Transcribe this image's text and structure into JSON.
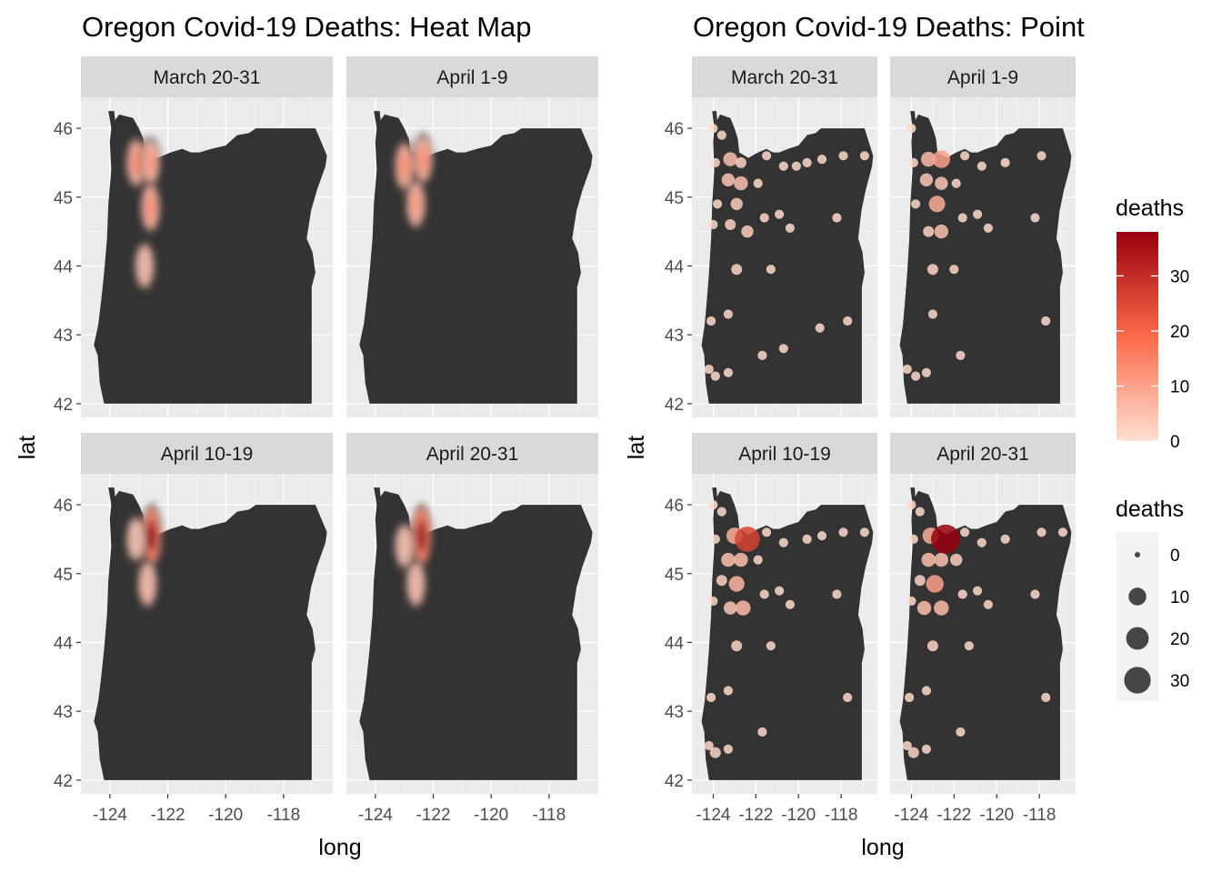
{
  "charts": {
    "left_title": "Oregon Covid-19 Deaths: Heat Map",
    "right_title": "Oregon Covid-19 Deaths: Point"
  },
  "panels": [
    "March 20-31",
    "April 1-9",
    "April 10-19",
    "April 20-31"
  ],
  "axes": {
    "xlabel": "long",
    "ylabel": "lat",
    "x_ticks": [
      -124,
      -122,
      -120,
      -118
    ],
    "x_tick_labels": [
      "-124",
      "-122",
      "-120",
      "-118"
    ],
    "y_ticks": [
      42,
      43,
      44,
      45,
      46
    ],
    "y_tick_labels": [
      "42",
      "43",
      "44",
      "45",
      "46"
    ],
    "xlim": [
      -125,
      -116.3
    ],
    "ylim": [
      41.8,
      46.45
    ]
  },
  "legend": {
    "color_title": "deaths",
    "color_ticks": [
      0,
      10,
      20,
      30
    ],
    "color_tick_labels": [
      "0",
      "10",
      "20",
      "30"
    ],
    "color_range": [
      0,
      38
    ],
    "size_title": "deaths",
    "size_values": [
      0,
      10,
      20,
      30
    ],
    "size_labels": [
      "0",
      "10",
      "20",
      "30"
    ]
  },
  "colors": {
    "low": "#fee0d2",
    "mid": "#fb6a4a",
    "high": "#99000d",
    "state_fill": "#333333",
    "panel_bg": "#ebebeb",
    "strip_bg": "#d9d9d9"
  },
  "chart_data": [
    {
      "type": "heatmap",
      "title": "Oregon Covid-19 Deaths: Heat Map",
      "xlabel": "long",
      "ylabel": "lat",
      "facets": [
        {
          "panel": "March 20-31",
          "hotspots": [
            {
              "lon": -123.1,
              "lat": 45.5,
              "intensity": 0.35
            },
            {
              "lon": -122.6,
              "lat": 45.5,
              "intensity": 0.3
            },
            {
              "lon": -122.6,
              "lat": 44.85,
              "intensity": 0.35
            },
            {
              "lon": -122.8,
              "lat": 44.0,
              "intensity": 0.2
            }
          ]
        },
        {
          "panel": "April 1-9",
          "hotspots": [
            {
              "lon": -123.0,
              "lat": 45.45,
              "intensity": 0.35
            },
            {
              "lon": -122.35,
              "lat": 45.55,
              "intensity": 0.35
            },
            {
              "lon": -122.6,
              "lat": 44.9,
              "intensity": 0.3
            }
          ]
        },
        {
          "panel": "April 10-19",
          "hotspots": [
            {
              "lon": -122.55,
              "lat": 45.55,
              "intensity": 1.0
            },
            {
              "lon": -123.1,
              "lat": 45.5,
              "intensity": 0.15
            },
            {
              "lon": -122.7,
              "lat": 44.85,
              "intensity": 0.2
            }
          ]
        },
        {
          "panel": "April 20-31",
          "hotspots": [
            {
              "lon": -122.4,
              "lat": 45.55,
              "intensity": 1.0
            },
            {
              "lon": -123.0,
              "lat": 45.4,
              "intensity": 0.15
            },
            {
              "lon": -122.6,
              "lat": 44.85,
              "intensity": 0.2
            }
          ]
        }
      ]
    },
    {
      "type": "scatter",
      "title": "Oregon Covid-19 Deaths: Point",
      "xlabel": "long",
      "ylabel": "lat",
      "size_and_color": "deaths",
      "facets": [
        {
          "panel": "March 20-31",
          "points": [
            [
              -124.0,
              46.0,
              1
            ],
            [
              -123.6,
              45.9,
              1
            ],
            [
              -123.9,
              45.5,
              1
            ],
            [
              -123.2,
              45.55,
              5
            ],
            [
              -122.7,
              45.5,
              2
            ],
            [
              -121.5,
              45.6,
              1
            ],
            [
              -120.7,
              45.45,
              1
            ],
            [
              -120.1,
              45.45,
              1
            ],
            [
              -119.6,
              45.5,
              1
            ],
            [
              -118.9,
              45.55,
              1
            ],
            [
              -117.9,
              45.6,
              1
            ],
            [
              -116.9,
              45.6,
              1
            ],
            [
              -123.3,
              45.25,
              4
            ],
            [
              -122.7,
              45.2,
              5
            ],
            [
              -121.9,
              45.2,
              1
            ],
            [
              -123.8,
              44.9,
              1
            ],
            [
              -122.9,
              44.9,
              3
            ],
            [
              -121.6,
              44.7,
              1
            ],
            [
              -120.9,
              44.75,
              1
            ],
            [
              -118.2,
              44.7,
              1
            ],
            [
              -123.2,
              44.6,
              2
            ],
            [
              -122.4,
              44.5,
              3
            ],
            [
              -120.4,
              44.55,
              1
            ],
            [
              -124.0,
              44.6,
              1
            ],
            [
              -122.9,
              43.95,
              2
            ],
            [
              -121.3,
              43.95,
              1
            ],
            [
              -123.3,
              43.3,
              1
            ],
            [
              -124.1,
              43.2,
              1
            ],
            [
              -119.0,
              43.1,
              1
            ],
            [
              -117.7,
              43.2,
              1
            ],
            [
              -120.7,
              42.8,
              1
            ],
            [
              -121.7,
              42.7,
              1
            ],
            [
              -124.2,
              42.5,
              1
            ],
            [
              -123.9,
              42.4,
              1
            ],
            [
              -123.3,
              42.45,
              1
            ]
          ]
        },
        {
          "panel": "April 1-9",
          "points": [
            [
              -124.0,
              46.0,
              1
            ],
            [
              -123.9,
              45.5,
              1
            ],
            [
              -123.2,
              45.55,
              6
            ],
            [
              -122.6,
              45.55,
              10
            ],
            [
              -121.5,
              45.6,
              1
            ],
            [
              -120.7,
              45.45,
              1
            ],
            [
              -119.6,
              45.5,
              1
            ],
            [
              -117.9,
              45.6,
              1
            ],
            [
              -123.3,
              45.25,
              4
            ],
            [
              -122.6,
              45.2,
              4
            ],
            [
              -121.9,
              45.2,
              1
            ],
            [
              -123.8,
              44.9,
              1
            ],
            [
              -122.8,
              44.9,
              8
            ],
            [
              -121.6,
              44.7,
              1
            ],
            [
              -120.9,
              44.75,
              1
            ],
            [
              -118.2,
              44.7,
              1
            ],
            [
              -123.2,
              44.5,
              2
            ],
            [
              -122.6,
              44.5,
              5
            ],
            [
              -120.4,
              44.55,
              1
            ],
            [
              -123.0,
              43.95,
              2
            ],
            [
              -122.0,
              43.95,
              1
            ],
            [
              -123.0,
              43.3,
              1
            ],
            [
              -117.7,
              43.2,
              1
            ],
            [
              -121.7,
              42.7,
              1
            ],
            [
              -124.2,
              42.5,
              1
            ],
            [
              -123.8,
              42.4,
              1
            ],
            [
              -123.3,
              42.45,
              1
            ]
          ]
        },
        {
          "panel": "April 10-19",
          "points": [
            [
              -124.0,
              46.0,
              1
            ],
            [
              -123.6,
              45.9,
              1
            ],
            [
              -123.9,
              45.5,
              1
            ],
            [
              -123.0,
              45.55,
              8
            ],
            [
              -122.4,
              45.5,
              26
            ],
            [
              -121.5,
              45.6,
              1
            ],
            [
              -120.7,
              45.45,
              1
            ],
            [
              -119.6,
              45.5,
              1
            ],
            [
              -118.9,
              45.55,
              1
            ],
            [
              -117.9,
              45.6,
              1
            ],
            [
              -116.9,
              45.6,
              1
            ],
            [
              -123.3,
              45.2,
              5
            ],
            [
              -122.7,
              45.2,
              5
            ],
            [
              -121.9,
              45.2,
              1
            ],
            [
              -123.6,
              44.9,
              2
            ],
            [
              -122.9,
              44.85,
              7
            ],
            [
              -121.6,
              44.7,
              1
            ],
            [
              -120.9,
              44.75,
              1
            ],
            [
              -118.2,
              44.7,
              1
            ],
            [
              -123.2,
              44.5,
              4
            ],
            [
              -122.6,
              44.5,
              6
            ],
            [
              -120.4,
              44.55,
              1
            ],
            [
              -124.0,
              44.6,
              1
            ],
            [
              -122.9,
              43.95,
              2
            ],
            [
              -121.3,
              43.95,
              1
            ],
            [
              -123.3,
              43.3,
              1
            ],
            [
              -124.1,
              43.2,
              1
            ],
            [
              -117.7,
              43.2,
              1
            ],
            [
              -121.7,
              42.7,
              1
            ],
            [
              -124.2,
              42.5,
              1
            ],
            [
              -123.9,
              42.4,
              2
            ],
            [
              -123.3,
              42.45,
              1
            ]
          ]
        },
        {
          "panel": "April 20-31",
          "points": [
            [
              -124.0,
              46.0,
              1
            ],
            [
              -123.6,
              45.9,
              1
            ],
            [
              -123.9,
              45.5,
              1
            ],
            [
              -123.1,
              45.55,
              8
            ],
            [
              -122.4,
              45.5,
              38
            ],
            [
              -121.5,
              45.6,
              1
            ],
            [
              -120.7,
              45.45,
              1
            ],
            [
              -119.6,
              45.5,
              1
            ],
            [
              -117.9,
              45.6,
              1
            ],
            [
              -116.9,
              45.6,
              1
            ],
            [
              -123.2,
              45.2,
              5
            ],
            [
              -122.6,
              45.2,
              5
            ],
            [
              -121.9,
              45.2,
              3
            ],
            [
              -123.6,
              44.9,
              2
            ],
            [
              -122.9,
              44.85,
              10
            ],
            [
              -121.6,
              44.7,
              1
            ],
            [
              -120.9,
              44.75,
              1
            ],
            [
              -118.2,
              44.7,
              1
            ],
            [
              -123.4,
              44.5,
              5
            ],
            [
              -122.6,
              44.5,
              6
            ],
            [
              -120.4,
              44.55,
              1
            ],
            [
              -124.0,
              44.6,
              1
            ],
            [
              -123.0,
              43.95,
              2
            ],
            [
              -121.3,
              43.95,
              1
            ],
            [
              -123.3,
              43.3,
              1
            ],
            [
              -124.1,
              43.2,
              1
            ],
            [
              -117.7,
              43.2,
              1
            ],
            [
              -121.7,
              42.7,
              1
            ],
            [
              -124.2,
              42.5,
              1
            ],
            [
              -123.9,
              42.4,
              2
            ],
            [
              -123.3,
              42.45,
              1
            ]
          ]
        }
      ]
    }
  ]
}
